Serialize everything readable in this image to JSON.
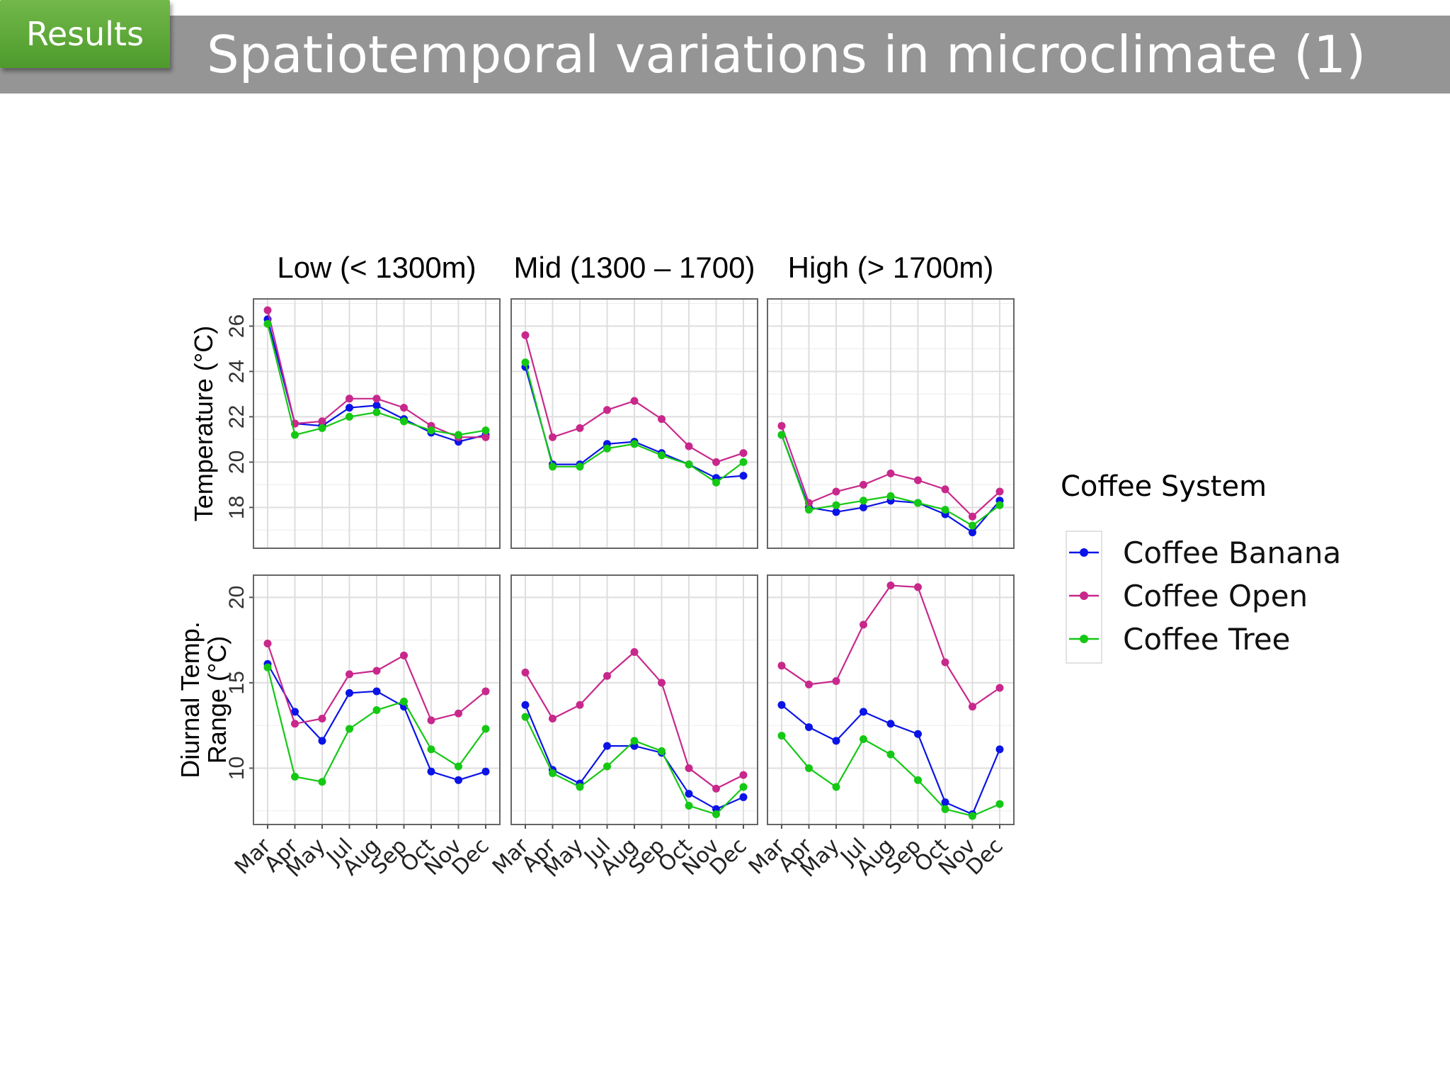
{
  "header": {
    "badge": "Results",
    "title": "Spatiotemporal variations in microclimate (1)"
  },
  "colors": {
    "title_bar": "#959595",
    "badge": "#5aa835",
    "coffee_banana": "#0a14e6",
    "coffee_open": "#c8288c",
    "coffee_tree": "#14c814"
  },
  "chart_data": {
    "type": "line",
    "layout": "facet grid: 2 rows (variables) x 3 columns (altitude zones)",
    "grid": true,
    "legend_position": "right",
    "legend_title": "Coffee System",
    "facet_titles": [
      "Low (< 1300m)",
      "Mid (1300 – 1700)",
      "High (> 1700m)"
    ],
    "categories": [
      "Mar",
      "Apr",
      "May",
      "Jul",
      "Aug",
      "Sep",
      "Oct",
      "Nov",
      "Dec"
    ],
    "rows": [
      {
        "ylabel_lines": [
          "Temperature (°C)"
        ],
        "ylim": [
          16.2,
          27.2
        ],
        "yticks": [
          18,
          20,
          22,
          24,
          26
        ],
        "panels": [
          {
            "facet": "Low (< 1300m)",
            "series": [
              {
                "name": "Coffee Banana",
                "values": [
                  26.3,
                  21.7,
                  21.6,
                  22.4,
                  22.5,
                  21.9,
                  21.3,
                  20.9,
                  21.2
                ]
              },
              {
                "name": "Coffee Open",
                "values": [
                  26.7,
                  21.7,
                  21.8,
                  22.8,
                  22.8,
                  22.4,
                  21.6,
                  21.1,
                  21.1
                ]
              },
              {
                "name": "Coffee Tree",
                "values": [
                  26.1,
                  21.2,
                  21.5,
                  22.0,
                  22.2,
                  21.8,
                  21.4,
                  21.2,
                  21.4
                ]
              }
            ]
          },
          {
            "facet": "Mid (1300 – 1700)",
            "series": [
              {
                "name": "Coffee Banana",
                "values": [
                  24.2,
                  19.9,
                  19.9,
                  20.8,
                  20.9,
                  20.4,
                  19.9,
                  19.3,
                  19.4
                ]
              },
              {
                "name": "Coffee Open",
                "values": [
                  25.6,
                  21.1,
                  21.5,
                  22.3,
                  22.7,
                  21.9,
                  20.7,
                  20.0,
                  20.4
                ]
              },
              {
                "name": "Coffee Tree",
                "values": [
                  24.4,
                  19.8,
                  19.8,
                  20.6,
                  20.8,
                  20.3,
                  19.9,
                  19.1,
                  20.0
                ]
              }
            ]
          },
          {
            "facet": "High (> 1700m)",
            "series": [
              {
                "name": "Coffee Banana",
                "values": [
                  21.2,
                  18.0,
                  17.8,
                  18.0,
                  18.3,
                  18.2,
                  17.7,
                  16.9,
                  18.3
                ]
              },
              {
                "name": "Coffee Open",
                "values": [
                  21.6,
                  18.2,
                  18.7,
                  19.0,
                  19.5,
                  19.2,
                  18.8,
                  17.6,
                  18.7
                ]
              },
              {
                "name": "Coffee Tree",
                "values": [
                  21.2,
                  17.9,
                  18.1,
                  18.3,
                  18.5,
                  18.2,
                  17.9,
                  17.2,
                  18.1
                ]
              }
            ]
          }
        ]
      },
      {
        "ylabel_lines": [
          "Diurnal Temp.",
          "Range (°C)"
        ],
        "ylim": [
          6.7,
          21.3
        ],
        "yticks": [
          10,
          15,
          20
        ],
        "panels": [
          {
            "facet": "Low (< 1300m)",
            "series": [
              {
                "name": "Coffee Banana",
                "values": [
                  16.1,
                  13.3,
                  11.6,
                  14.4,
                  14.5,
                  13.6,
                  9.8,
                  9.3,
                  9.8
                ]
              },
              {
                "name": "Coffee Open",
                "values": [
                  17.3,
                  12.6,
                  12.9,
                  15.5,
                  15.7,
                  16.6,
                  12.8,
                  13.2,
                  14.5
                ]
              },
              {
                "name": "Coffee Tree",
                "values": [
                  15.9,
                  9.5,
                  9.2,
                  12.3,
                  13.4,
                  13.9,
                  11.1,
                  10.1,
                  12.3
                ]
              }
            ]
          },
          {
            "facet": "Mid (1300 – 1700)",
            "series": [
              {
                "name": "Coffee Banana",
                "values": [
                  13.7,
                  9.9,
                  9.1,
                  11.3,
                  11.3,
                  10.9,
                  8.5,
                  7.6,
                  8.3
                ]
              },
              {
                "name": "Coffee Open",
                "values": [
                  15.6,
                  12.9,
                  13.7,
                  15.4,
                  16.8,
                  15.0,
                  10.0,
                  8.8,
                  9.6
                ]
              },
              {
                "name": "Coffee Tree",
                "values": [
                  13.0,
                  9.7,
                  8.9,
                  10.1,
                  11.6,
                  11.0,
                  7.8,
                  7.3,
                  8.9
                ]
              }
            ]
          },
          {
            "facet": "High (> 1700m)",
            "series": [
              {
                "name": "Coffee Banana",
                "values": [
                  13.7,
                  12.4,
                  11.6,
                  13.3,
                  12.6,
                  12.0,
                  8.0,
                  7.3,
                  11.1
                ]
              },
              {
                "name": "Coffee Open",
                "values": [
                  16.0,
                  14.9,
                  15.1,
                  18.4,
                  20.7,
                  20.6,
                  16.2,
                  13.6,
                  14.7
                ]
              },
              {
                "name": "Coffee Tree",
                "values": [
                  11.9,
                  10.0,
                  8.9,
                  11.7,
                  10.8,
                  9.3,
                  7.6,
                  7.2,
                  7.9
                ]
              }
            ]
          }
        ]
      }
    ],
    "legend": [
      {
        "name": "Coffee Banana",
        "color": "#0a14e6"
      },
      {
        "name": "Coffee Open",
        "color": "#c8288c"
      },
      {
        "name": "Coffee Tree",
        "color": "#14c814"
      }
    ]
  }
}
